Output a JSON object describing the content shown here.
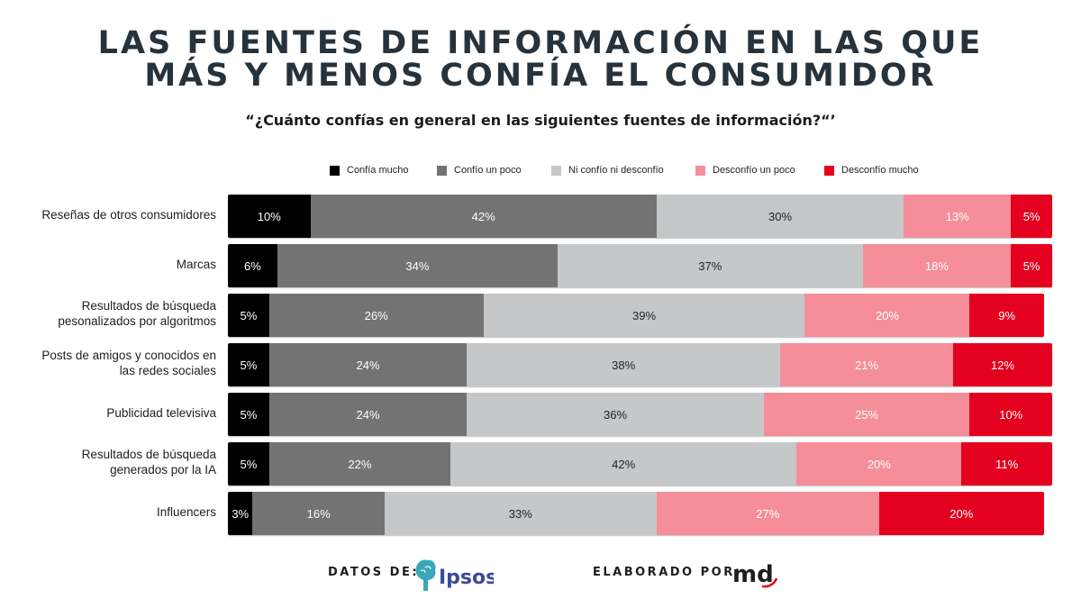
{
  "title_lines": [
    "Las fuentes de información en las que",
    "más y menos confía el consumidor"
  ],
  "subtitle": "“¿Cuánto confías en general en las siguientes fuentes de información?“’",
  "colors": {
    "confia_mucho": "#000000",
    "confio_un_poco": "#737373",
    "ni_confio": "#c5c7c9",
    "desconfio_un_poco": "#f58e99",
    "desconfio_mucho": "#e4001f"
  },
  "footer": {
    "datos_label": "DATOS DE:",
    "ipsos_logo_text": "Ipsos",
    "elaborado_label": "ELABORADO POR:",
    "md_logo_text": "md"
  },
  "chart_data": {
    "type": "bar",
    "orientation": "horizontal-stacked",
    "title": "Las fuentes de información en las que más y menos confía el consumidor",
    "subtitle": "“¿Cuánto confías en general en las siguientes fuentes de información?“’",
    "legend_position": "top",
    "categories": [
      "Reseñas de otros consumidores",
      "Marcas",
      "Resultados de búsqueda pesonalizados por algoritmos",
      "Posts de amigos y conocidos en las redes sociales",
      "Publicidad televisiva",
      "Resultados de búsqueda generados por la IA",
      "Influencers"
    ],
    "category_lines": [
      [
        "Reseñas de otros consumidores"
      ],
      [
        "Marcas"
      ],
      [
        "Resultados de búsqueda",
        "pesonalizados por algoritmos"
      ],
      [
        "Posts de amigos y conocidos en",
        "las redes sociales"
      ],
      [
        "Publicidad televisiva"
      ],
      [
        "Resultados de búsqueda",
        "generados por la IA"
      ],
      [
        "Influencers"
      ]
    ],
    "series": [
      {
        "name": "Confía mucho",
        "color_key": "confia_mucho",
        "label_color": "#ffffff",
        "values": [
          10,
          6,
          5,
          5,
          5,
          5,
          3
        ]
      },
      {
        "name": "Confío un poco",
        "color_key": "confio_un_poco",
        "label_color": "#ffffff",
        "values": [
          42,
          34,
          26,
          24,
          24,
          22,
          16
        ]
      },
      {
        "name": "Ni confío ni desconfío",
        "color_key": "ni_confio",
        "label_color": "#222222",
        "values": [
          30,
          37,
          39,
          38,
          36,
          42,
          33
        ]
      },
      {
        "name": "Desconfío un poco",
        "color_key": "desconfio_un_poco",
        "label_color": "#ffffff",
        "values": [
          13,
          18,
          20,
          21,
          25,
          20,
          27
        ]
      },
      {
        "name": "Desconfío mucho",
        "color_key": "desconfio_mucho",
        "label_color": "#ffffff",
        "values": [
          5,
          5,
          9,
          12,
          10,
          11,
          20
        ]
      }
    ],
    "value_suffix": "%"
  }
}
